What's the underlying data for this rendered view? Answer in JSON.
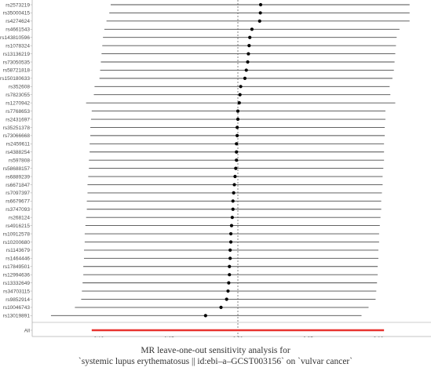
{
  "chart_data": {
    "type": "forest",
    "snps": [
      {
        "label": "rs2573219",
        "estimate": 0.0162,
        "lo": -0.0905,
        "hi": 0.1222
      },
      {
        "label": "rs35000415",
        "estimate": 0.016,
        "lo": -0.0915,
        "hi": 0.1222
      },
      {
        "label": "rs4274624",
        "estimate": 0.0155,
        "lo": -0.0935,
        "hi": 0.1222
      },
      {
        "label": "rs4661543",
        "estimate": 0.01,
        "lo": -0.095,
        "hi": 0.115
      },
      {
        "label": "rs143810596",
        "estimate": 0.0085,
        "lo": -0.096,
        "hi": 0.113
      },
      {
        "label": "rs1078324",
        "estimate": 0.008,
        "lo": -0.0965,
        "hi": 0.1125
      },
      {
        "label": "rs13136219",
        "estimate": 0.0075,
        "lo": -0.097,
        "hi": 0.112
      },
      {
        "label": "rs73050535",
        "estimate": 0.007,
        "lo": -0.0975,
        "hi": 0.1115
      },
      {
        "label": "rs58721818",
        "estimate": 0.006,
        "lo": -0.098,
        "hi": 0.111
      },
      {
        "label": "rs150180633",
        "estimate": 0.005,
        "lo": -0.0985,
        "hi": 0.11
      },
      {
        "label": "rs352608",
        "estimate": 0.002,
        "lo": -0.102,
        "hi": 0.108
      },
      {
        "label": "rs7823055",
        "estimate": 0.0015,
        "lo": -0.1025,
        "hi": 0.1085
      },
      {
        "label": "rs1270942",
        "estimate": 0.001,
        "lo": -0.108,
        "hi": 0.112
      },
      {
        "label": "rs7768653",
        "estimate": 0.0,
        "lo": -0.104,
        "hi": 0.105
      },
      {
        "label": "rs2431697",
        "estimate": 0.0,
        "lo": -0.1045,
        "hi": 0.105
      },
      {
        "label": "rs35251378",
        "estimate": -0.0005,
        "lo": -0.105,
        "hi": 0.1045
      },
      {
        "label": "rs73066668",
        "estimate": -0.0005,
        "lo": -0.105,
        "hi": 0.1045
      },
      {
        "label": "rs2459611",
        "estimate": -0.001,
        "lo": -0.1055,
        "hi": 0.104
      },
      {
        "label": "rs4388254",
        "estimate": -0.001,
        "lo": -0.1055,
        "hi": 0.104
      },
      {
        "label": "rs597808",
        "estimate": -0.001,
        "lo": -0.106,
        "hi": 0.104
      },
      {
        "label": "rs58688157",
        "estimate": -0.0015,
        "lo": -0.106,
        "hi": 0.1035
      },
      {
        "label": "rs6889239",
        "estimate": -0.002,
        "lo": -0.1065,
        "hi": 0.103
      },
      {
        "label": "rs6671847",
        "estimate": -0.0025,
        "lo": -0.107,
        "hi": 0.103
      },
      {
        "label": "rs7097397",
        "estimate": -0.003,
        "lo": -0.107,
        "hi": 0.1025
      },
      {
        "label": "rs6679677",
        "estimate": -0.0035,
        "lo": -0.1075,
        "hi": 0.102
      },
      {
        "label": "rs3747093",
        "estimate": -0.0035,
        "lo": -0.1075,
        "hi": 0.102
      },
      {
        "label": "rs268124",
        "estimate": -0.004,
        "lo": -0.108,
        "hi": 0.1015
      },
      {
        "label": "rs4916215",
        "estimate": -0.0045,
        "lo": -0.1085,
        "hi": 0.101
      },
      {
        "label": "rs10912578",
        "estimate": -0.005,
        "lo": -0.109,
        "hi": 0.1005
      },
      {
        "label": "rs10200680",
        "estimate": -0.005,
        "lo": -0.109,
        "hi": 0.1005
      },
      {
        "label": "rs1143679",
        "estimate": -0.0055,
        "lo": -0.1095,
        "hi": 0.1
      },
      {
        "label": "rs1464446",
        "estimate": -0.0055,
        "lo": -0.1095,
        "hi": 0.1
      },
      {
        "label": "rs17849501",
        "estimate": -0.006,
        "lo": -0.11,
        "hi": 0.0995
      },
      {
        "label": "rs12994636",
        "estimate": -0.006,
        "lo": -0.11,
        "hi": 0.0995
      },
      {
        "label": "rs13332649",
        "estimate": -0.0065,
        "lo": -0.1105,
        "hi": 0.099
      },
      {
        "label": "rs34703115",
        "estimate": -0.007,
        "lo": -0.111,
        "hi": 0.0985
      },
      {
        "label": "rs9852914",
        "estimate": -0.008,
        "lo": -0.1115,
        "hi": 0.098
      },
      {
        "label": "rs10046743",
        "estimate": -0.012,
        "lo": -0.116,
        "hi": 0.093
      },
      {
        "label": "rs13019891",
        "estimate": -0.023,
        "lo": -0.133,
        "hi": 0.088
      }
    ],
    "overall": {
      "label": "All",
      "estimate": 0.0,
      "lo": -0.104,
      "hi": 0.104
    },
    "x_ticks": [
      -0.1,
      -0.05,
      0.0,
      0.05,
      0.1
    ],
    "x_tick_labels": [
      "−0.10",
      "−0.05",
      "0.00",
      "0.05",
      "0.10"
    ],
    "xlim": [
      -0.145,
      0.135
    ],
    "reference_line": 0,
    "grid": false,
    "colors": {
      "line": "#4d4d4d",
      "point": "#000000",
      "overall": "#e8332f",
      "reference": "#666666",
      "axis": "#b3b3b3"
    }
  },
  "caption": {
    "line1": "MR leave-one-out sensitivity analysis for",
    "line2": "`systemic lupus erythematosus || id:ebi–a–GCST003156` on `vulvar cancer`"
  }
}
